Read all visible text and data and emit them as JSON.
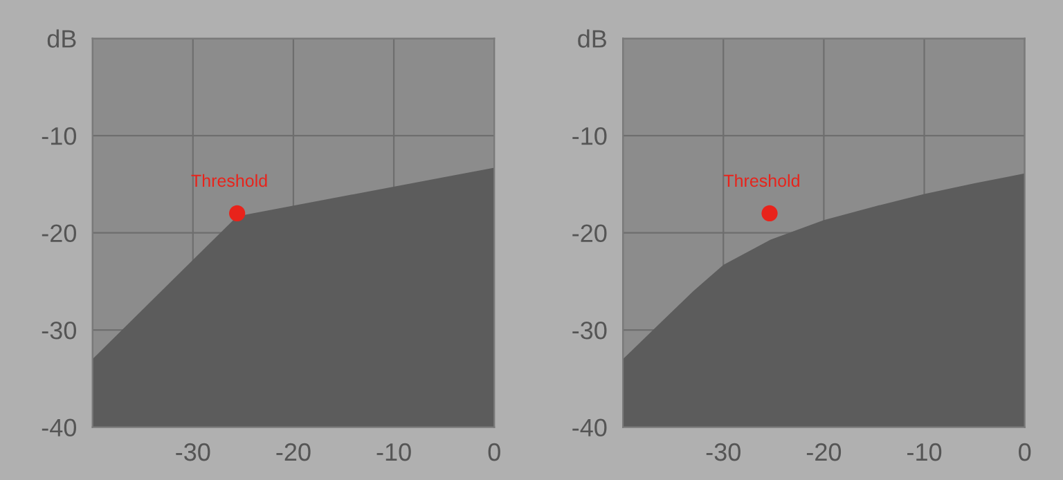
{
  "chart_data": [
    {
      "type": "area",
      "x": [
        -40,
        -25.6,
        0
      ],
      "series": [
        {
          "type": "area",
          "color": "#5c5c5c",
          "values": [
            -33,
            -18.3,
            -13.3
          ]
        },
        {
          "type": "scatter",
          "color": "#e8231b",
          "x": [
            -25.6
          ],
          "values": [
            -18
          ]
        }
      ],
      "xlim": [
        -40,
        0
      ],
      "ylim": [
        -40,
        0
      ],
      "xticks": [
        {
          "value": -40,
          "label": null
        },
        -30,
        -20,
        -10,
        0
      ],
      "yticks": [
        -40,
        -30,
        -20,
        -10,
        {
          "value": 0,
          "label": "dB"
        }
      ],
      "grid": true,
      "annotations": [
        {
          "text": "Threshold",
          "x": -25.6,
          "y": -18
        }
      ]
    },
    {
      "type": "area",
      "x": [
        -40,
        -36,
        -33,
        -30,
        -25.3,
        -20,
        -15,
        -10,
        -5,
        0
      ],
      "series": [
        {
          "type": "area",
          "color": "#5c5c5c",
          "values": [
            -33,
            -29,
            -26,
            -23.3,
            -20.7,
            -18.7,
            -17.3,
            -16,
            -14.9,
            -13.9
          ]
        },
        {
          "type": "scatter",
          "color": "#e8231b",
          "x": [
            -25.4
          ],
          "values": [
            -18
          ]
        }
      ],
      "xlim": [
        -40,
        0
      ],
      "ylim": [
        -40,
        0
      ],
      "xticks": [
        {
          "value": -40,
          "label": null
        },
        -30,
        -20,
        -10,
        0
      ],
      "yticks": [
        -40,
        -30,
        -20,
        -10,
        {
          "value": 0,
          "label": "dB"
        }
      ],
      "grid": true,
      "annotations": [
        {
          "text": "Threshold",
          "x": -25.4,
          "y": -18
        }
      ]
    }
  ]
}
